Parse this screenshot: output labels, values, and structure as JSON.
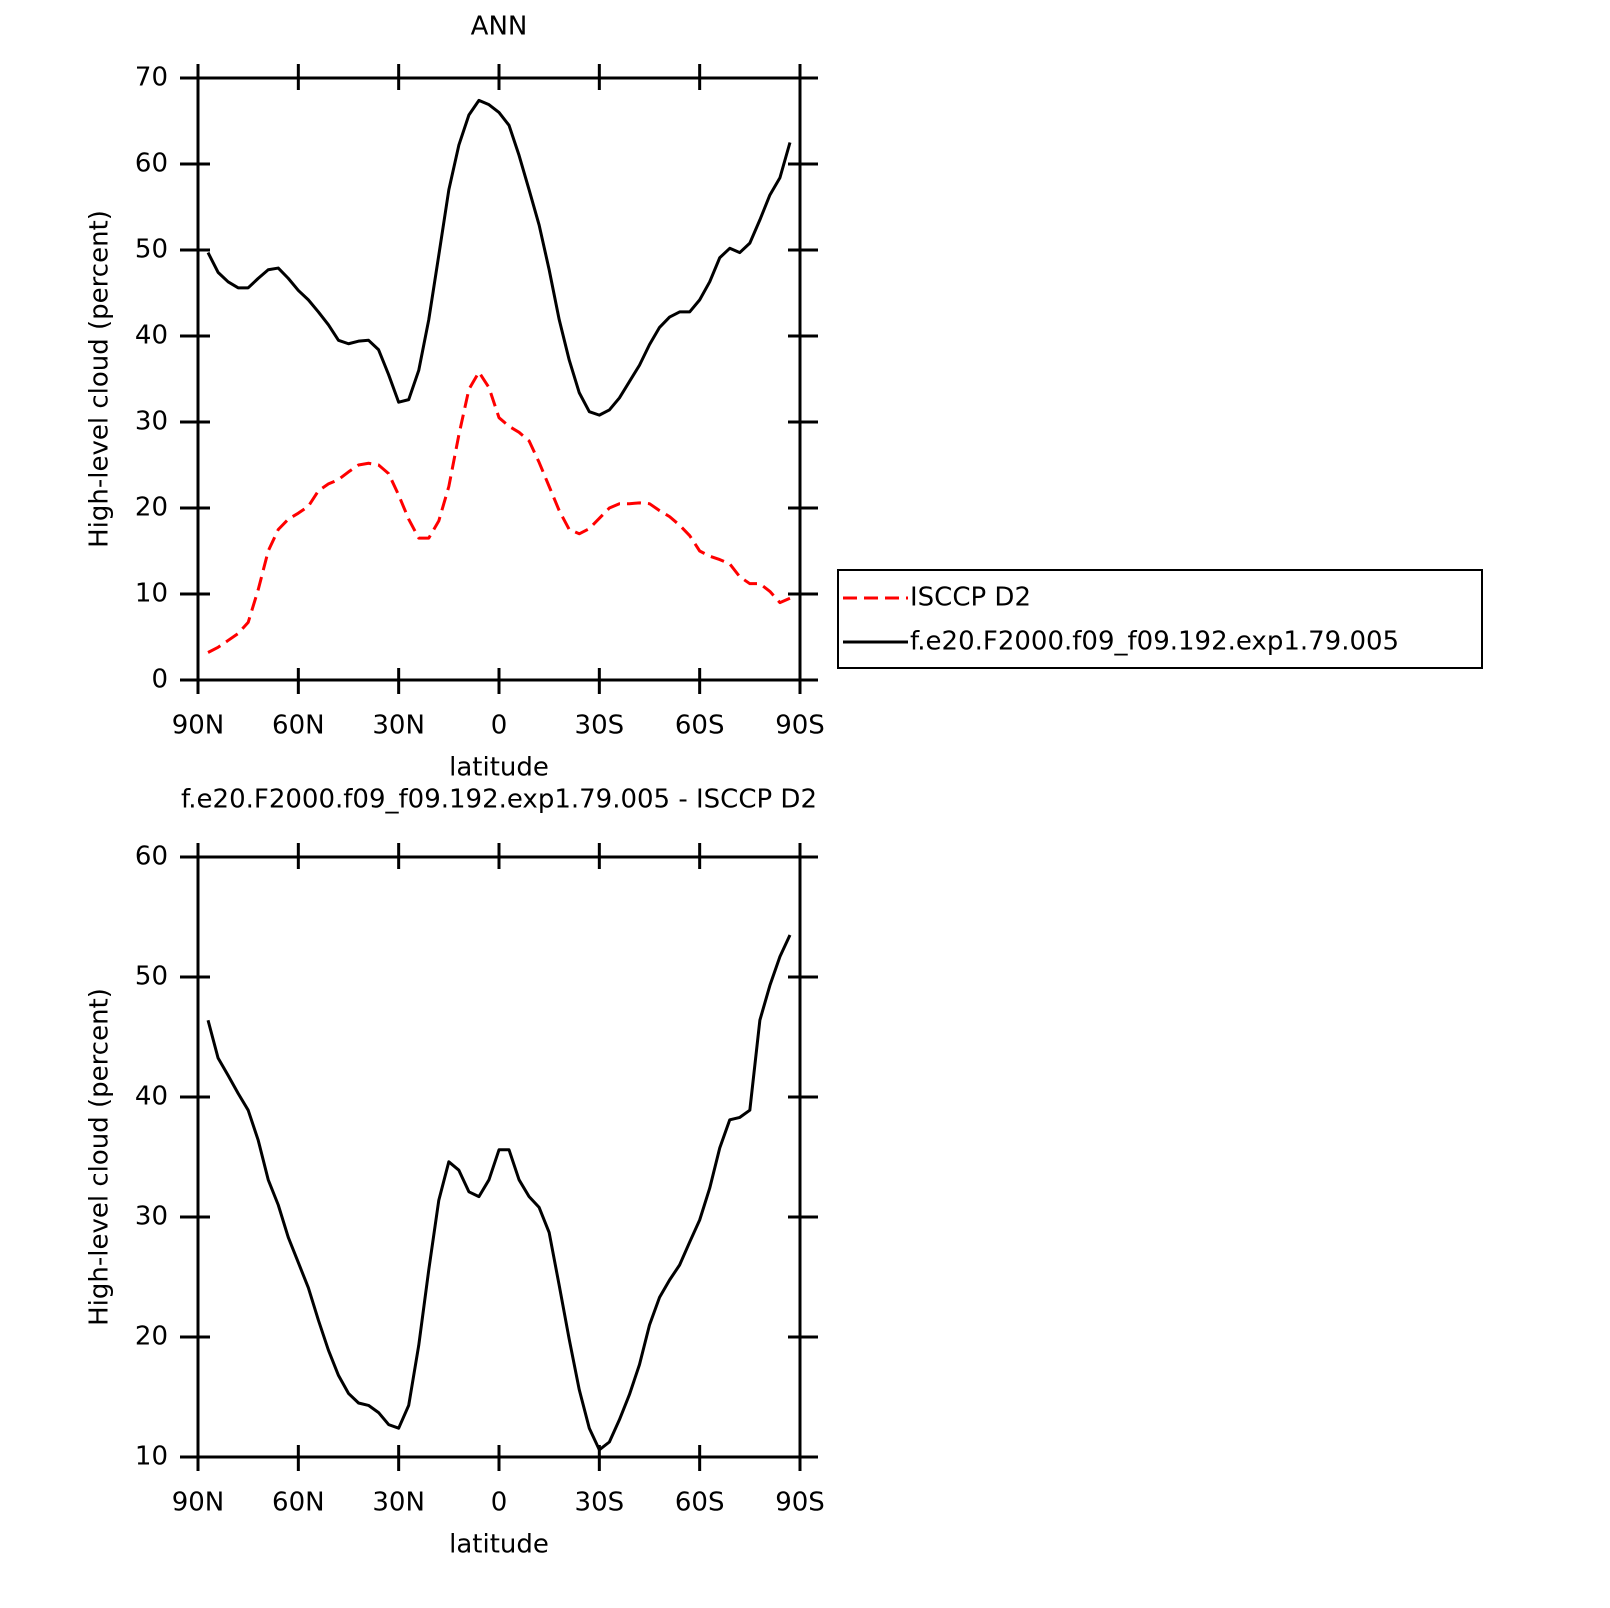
{
  "chart_data": [
    {
      "type": "line",
      "title": "ANN",
      "xlabel": "latitude",
      "ylabel": "High-level cloud (percent)",
      "x": [
        87,
        84,
        81,
        78,
        75,
        72,
        69,
        66,
        63,
        60,
        57,
        54,
        51,
        48,
        45,
        42,
        39,
        36,
        33,
        30,
        27,
        24,
        21,
        18,
        15,
        12,
        9,
        6,
        3,
        0,
        -3,
        -6,
        -9,
        -12,
        -15,
        -18,
        -21,
        -24,
        -27,
        -30,
        -33,
        -36,
        -39,
        -42,
        -45,
        -48,
        -51,
        -54,
        -57,
        -60,
        -63,
        -66,
        -69,
        -72,
        -75,
        -78,
        -81,
        -84,
        -87
      ],
      "series": [
        {
          "name": "ISCCP D2",
          "color": "#ff0000",
          "linestyle": "dashed",
          "values": [
            3.2,
            3.8,
            4.6,
            5.4,
            6.7,
            10.5,
            15,
            17.5,
            18.7,
            19.4,
            20.2,
            22,
            22.8,
            23.3,
            24.2,
            25,
            25.2,
            25,
            24,
            21.5,
            18.7,
            16.5,
            16.5,
            18.5,
            22.5,
            28.5,
            33.8,
            35.8,
            34,
            30.5,
            29.5,
            28.8,
            27.8,
            25.3,
            22.5,
            19.7,
            17.5,
            17,
            17.6,
            18.8,
            20,
            20.5,
            20.5,
            20.6,
            20.5,
            19.7,
            19,
            18,
            16.8,
            15,
            14.4,
            14,
            13.5,
            12,
            11.2,
            11.2,
            10.3,
            9,
            9.5
          ]
        },
        {
          "name": "f.e20.F2000.f09_f09.192.exp1.79.005",
          "color": "#000000",
          "linestyle": "solid",
          "values": [
            49.7,
            47.4,
            46.3,
            45.6,
            45.6,
            46.7,
            47.7,
            47.9,
            46.7,
            45.3,
            44.2,
            42.8,
            41.3,
            39.5,
            39.1,
            39.4,
            39.5,
            38.4,
            35.5,
            32.3,
            32.6,
            36,
            41.9,
            49.4,
            57,
            62.2,
            65.7,
            67.4,
            66.9,
            66,
            64.5,
            61,
            57,
            52.9,
            47.7,
            41.9,
            37.2,
            33.4,
            31.2,
            30.8,
            31.4,
            32.8,
            34.7,
            36.6,
            39,
            41,
            42.2,
            42.8,
            42.8,
            44.2,
            46.3,
            49.1,
            50.2,
            49.7,
            50.8,
            53.5,
            56.4,
            58.4,
            62.5
          ]
        }
      ],
      "xlim": [
        90,
        -90
      ],
      "xticks": [
        {
          "value": 90,
          "label": "90N"
        },
        {
          "value": 60,
          "label": "60N"
        },
        {
          "value": 30,
          "label": "30N"
        },
        0,
        {
          "value": -30,
          "label": "30S"
        },
        {
          "value": -60,
          "label": "60S"
        },
        {
          "value": -90,
          "label": "90S"
        }
      ],
      "ylim": [
        0,
        70
      ],
      "yticks": [
        0,
        10,
        20,
        30,
        40,
        50,
        60,
        70
      ],
      "legend": "right"
    },
    {
      "type": "line",
      "title": "f.e20.F2000.f09_f09.192.exp1.79.005 - ISCCP D2",
      "xlabel": "latitude",
      "ylabel": "High-level cloud (percent)",
      "x": [
        87,
        84,
        81,
        78,
        75,
        72,
        69,
        66,
        63,
        60,
        57,
        54,
        51,
        48,
        45,
        42,
        39,
        36,
        33,
        30,
        27,
        24,
        21,
        18,
        15,
        12,
        9,
        6,
        3,
        0,
        -3,
        -6,
        -9,
        -12,
        -15,
        -18,
        -21,
        -24,
        -27,
        -30,
        -33,
        -36,
        -39,
        -42,
        -45,
        -48,
        -51,
        -54,
        -57,
        -60,
        -63,
        -66,
        -69,
        -72,
        -75,
        -78,
        -81,
        -84,
        -87
      ],
      "series": [
        {
          "color": "#000000",
          "linestyle": "solid",
          "values": [
            46.4,
            43.25,
            41.8,
            40.3,
            38.9,
            36.4,
            33.1,
            31,
            28.3,
            26.2,
            24.1,
            21.4,
            18.9,
            16.8,
            15.3,
            14.5,
            14.3,
            13.7,
            12.7,
            12.4,
            14.3,
            19.3,
            25.6,
            31.4,
            34.6,
            33.9,
            32.1,
            31.7,
            33.1,
            35.6,
            35.6,
            33.1,
            31.7,
            30.8,
            28.7,
            24.3,
            19.8,
            15.6,
            12.4,
            10.6,
            11.25,
            13.1,
            15.2,
            17.7,
            21,
            23.3,
            24.75,
            26,
            27.9,
            29.75,
            32.4,
            35.75,
            38.1,
            38.3,
            38.9,
            46.4,
            49.3,
            51.7,
            53.5
          ]
        }
      ],
      "xlim": [
        90,
        -90
      ],
      "xticks": [
        {
          "value": 90,
          "label": "90N"
        },
        {
          "value": 60,
          "label": "60N"
        },
        {
          "value": 30,
          "label": "30N"
        },
        0,
        {
          "value": -30,
          "label": "30S"
        },
        {
          "value": -60,
          "label": "60S"
        },
        {
          "value": -90,
          "label": "90S"
        }
      ],
      "ylim": [
        10,
        60
      ],
      "yticks": [
        10,
        20,
        30,
        40,
        50,
        60
      ]
    }
  ]
}
